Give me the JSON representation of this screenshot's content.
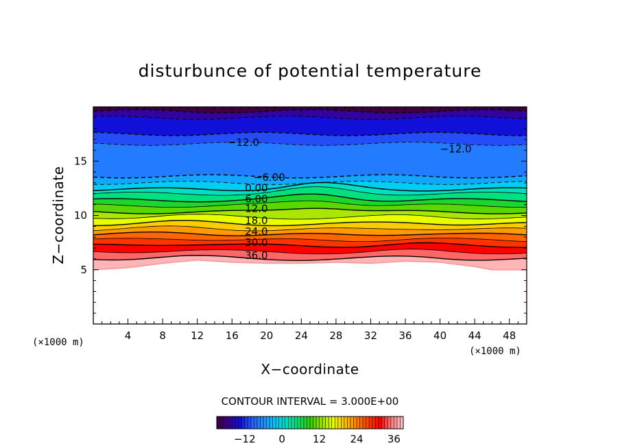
{
  "chart_data": {
    "type": "contour",
    "title": "disturbunce of potential temperature",
    "xlabel": "X−coordinate",
    "ylabel": "Z−coordinate",
    "x_unit": "(×1000 m)",
    "y_unit": "(×1000 m)",
    "xlim": [
      0,
      50
    ],
    "ylim": [
      0,
      20
    ],
    "x_ticks": [
      4,
      8,
      12,
      16,
      20,
      24,
      28,
      32,
      36,
      40,
      44,
      48
    ],
    "y_ticks": [
      5,
      10,
      15
    ],
    "contour_interval_text": "CONTOUR INTERVAL = 3.000E+00",
    "contour_labels": [
      {
        "text": "−12.0",
        "x": 15.5,
        "y": 16.4
      },
      {
        "text": "−12.0",
        "x": 40.0,
        "y": 15.8
      },
      {
        "text": "−6.00",
        "x": 18.5,
        "y": 13.2
      },
      {
        "text": "0.00",
        "x": 17.5,
        "y": 12.2
      },
      {
        "text": "6.00",
        "x": 17.5,
        "y": 11.2
      },
      {
        "text": "12.0",
        "x": 17.5,
        "y": 10.3
      },
      {
        "text": "18.0",
        "x": 17.5,
        "y": 9.2
      },
      {
        "text": "24.0",
        "x": 17.5,
        "y": 8.2
      },
      {
        "text": "30.0",
        "x": 17.5,
        "y": 7.2
      },
      {
        "text": "36.0",
        "x": 17.5,
        "y": 6.0
      }
    ],
    "levels": [
      -18,
      -15,
      -12,
      -9,
      -6,
      -3,
      0,
      3,
      6,
      9,
      12,
      15,
      18,
      21,
      24,
      27,
      30,
      33,
      36
    ],
    "level_heights_km": [
      19.6,
      19.0,
      17.5,
      16.6,
      13.6,
      13.0,
      12.4,
      12.0,
      11.4,
      10.9,
      10.3,
      9.8,
      9.2,
      8.7,
      8.2,
      7.7,
      7.2,
      6.6,
      6.0
    ],
    "terrain_height_km": [
      [
        0,
        5.0
      ],
      [
        4,
        5.2
      ],
      [
        8,
        5.6
      ],
      [
        12,
        5.9
      ],
      [
        14,
        5.8
      ],
      [
        16,
        5.7
      ],
      [
        20,
        5.6
      ],
      [
        24,
        5.6
      ],
      [
        28,
        5.7
      ],
      [
        32,
        5.6
      ],
      [
        36,
        5.8
      ],
      [
        40,
        5.7
      ],
      [
        44,
        5.3
      ],
      [
        46,
        5.0
      ],
      [
        50,
        5.0
      ]
    ],
    "colorbar": {
      "ticks": [
        "−12",
        "0",
        "12",
        "24",
        "36"
      ],
      "tick_values": [
        -12,
        0,
        12,
        24,
        36
      ],
      "range": [
        -21,
        39
      ]
    },
    "colormap": [
      "#400040",
      "#3a0090",
      "#1010d8",
      "#2a5cff",
      "#1e90ff",
      "#00c8ff",
      "#00e0c0",
      "#00e070",
      "#30d000",
      "#9ae000",
      "#e8ff00",
      "#ffc000",
      "#ff8000",
      "#ff4000",
      "#ff0000",
      "#ff8080",
      "#ffc8c8"
    ]
  }
}
